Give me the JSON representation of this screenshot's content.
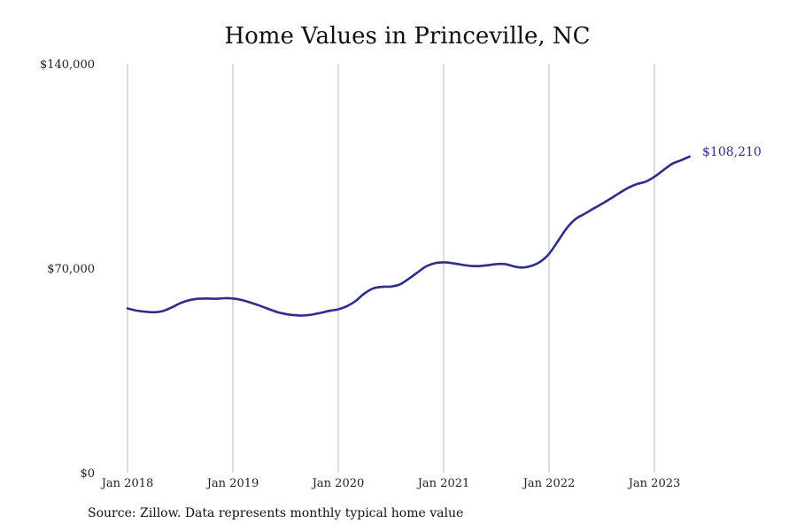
{
  "chart_data": {
    "type": "line",
    "title": "Home Values in Princeville, NC",
    "xlabel": "",
    "ylabel": "",
    "ylim": [
      0,
      140000
    ],
    "y_ticks": [
      {
        "value": 0,
        "label": "$0"
      },
      {
        "value": 70000,
        "label": "$70,000"
      },
      {
        "value": 140000,
        "label": "$140,000"
      }
    ],
    "x_ticks": [
      {
        "value": 2018.0,
        "label": "Jan 2018"
      },
      {
        "value": 2019.0,
        "label": "Jan 2019"
      },
      {
        "value": 2020.0,
        "label": "Jan 2020"
      },
      {
        "value": 2021.0,
        "label": "Jan 2021"
      },
      {
        "value": 2022.0,
        "label": "Jan 2022"
      },
      {
        "value": 2023.0,
        "label": "Jan 2023"
      }
    ],
    "grid": "vertical",
    "line_color": "#2e2d88",
    "end_label": "$108,210",
    "series": [
      {
        "x": [
          "2018-01",
          "2018-02",
          "2018-03",
          "2018-04",
          "2018-05",
          "2018-06",
          "2018-07",
          "2018-08",
          "2018-09",
          "2018-10",
          "2018-11",
          "2018-12",
          "2019-01",
          "2019-02",
          "2019-03",
          "2019-04",
          "2019-05",
          "2019-06",
          "2019-07",
          "2019-08",
          "2019-09",
          "2019-10",
          "2019-11",
          "2019-12",
          "2020-01",
          "2020-02",
          "2020-03",
          "2020-04",
          "2020-05",
          "2020-06",
          "2020-07",
          "2020-08",
          "2020-09",
          "2020-10",
          "2020-11",
          "2020-12",
          "2021-01",
          "2021-02",
          "2021-03",
          "2021-04",
          "2021-05",
          "2021-06",
          "2021-07",
          "2021-08",
          "2021-09",
          "2021-10",
          "2021-11",
          "2021-12",
          "2022-01",
          "2022-02",
          "2022-03",
          "2022-04",
          "2022-05",
          "2022-06",
          "2022-07",
          "2022-08",
          "2022-09",
          "2022-10",
          "2022-11",
          "2022-12",
          "2023-01",
          "2023-02",
          "2023-03",
          "2023-04",
          "2023-05"
        ],
        "values": [
          56200,
          55500,
          55100,
          54900,
          55300,
          56500,
          58000,
          59000,
          59500,
          59600,
          59500,
          59700,
          59600,
          59100,
          58200,
          57200,
          56100,
          55000,
          54300,
          53900,
          53800,
          54100,
          54700,
          55400,
          55900,
          57000,
          58800,
          61400,
          63100,
          63600,
          63700,
          64400,
          66300,
          68500,
          70600,
          71700,
          72000,
          71700,
          71200,
          70800,
          70700,
          71000,
          71400,
          71400,
          70600,
          70200,
          70800,
          72200,
          74900,
          79200,
          83600,
          86800,
          88500,
          90300,
          92000,
          93800,
          95700,
          97500,
          98800,
          99600,
          101300,
          103500,
          105700,
          106900,
          108210
        ]
      }
    ]
  },
  "source_note": "Source: Zillow. Data represents monthly typical home value"
}
